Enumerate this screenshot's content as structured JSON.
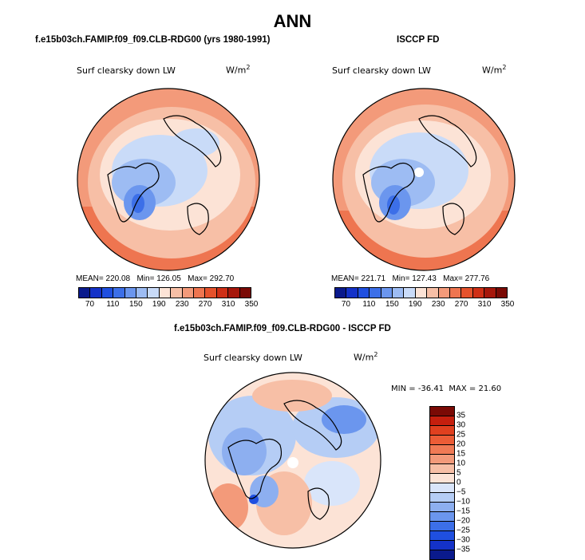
{
  "title": "ANN",
  "panels": {
    "model": {
      "title": "f.e15b03ch.FAMIP.f09_f09.CLB-RDG00 (yrs 1980-1991)",
      "variable": "Surf clearsky down LW",
      "units": "W/m",
      "units_exp": "2",
      "mean_label": "MEAN=",
      "mean": "220.08",
      "min_label": "Min=",
      "min": "126.05",
      "max_label": "Max=",
      "max": "292.70"
    },
    "obs": {
      "title": "ISCCP FD",
      "variable": "Surf clearsky down LW",
      "units": "W/m",
      "units_exp": "2",
      "mean_label": "MEAN=",
      "mean": "221.71",
      "min_label": "Min=",
      "min": "127.43",
      "max_label": "Max=",
      "max": "277.76"
    },
    "diff": {
      "title": "f.e15b03ch.FAMIP.f09_f09.CLB-RDG00 - ISCCP FD",
      "variable": "Surf clearsky down LW",
      "units": "W/m",
      "units_exp": "2",
      "min_label": "MIN =",
      "min": "-36.41",
      "max_label": "MAX =",
      "max": "21.60"
    }
  },
  "colorbar_abs": {
    "ticks": [
      "70",
      "110",
      "150",
      "190",
      "230",
      "270",
      "310",
      "350"
    ],
    "colors": [
      "#0a1a8c",
      "#1432c8",
      "#1f4fe0",
      "#3c6fe8",
      "#6b96ee",
      "#9dbcf3",
      "#c9dbf8",
      "#fce3d6",
      "#f7bfa6",
      "#f39a7a",
      "#ee7550",
      "#e5522c",
      "#cf2f16",
      "#a6170b",
      "#7a0a05"
    ]
  },
  "colorbar_diff": {
    "ticks": [
      "35",
      "30",
      "25",
      "20",
      "15",
      "10",
      "5",
      "0",
      "−5",
      "−10",
      "−15",
      "−20",
      "−25",
      "−30",
      "−35"
    ],
    "colors": [
      "#7a0a05",
      "#c51f0e",
      "#e0401f",
      "#ec5c36",
      "#f07a55",
      "#f39a7a",
      "#f7bfa6",
      "#fce3d6",
      "#d9e5fa",
      "#b5cdf5",
      "#8daff0",
      "#6b96ee",
      "#3c6fe8",
      "#1f4fe0",
      "#1432c8",
      "#0a1a8c"
    ]
  },
  "chart_data": [
    {
      "type": "heatmap",
      "title": "f.e15b03ch.FAMIP.f09_f09.CLB-RDG00 (yrs 1980-1991)",
      "variable": "Surf clearsky down LW",
      "units": "W/m^2",
      "projection": "north polar stereographic",
      "stats": {
        "mean": 220.08,
        "min": 126.05,
        "max": 292.7
      },
      "levels": [
        70,
        90,
        110,
        130,
        150,
        170,
        190,
        210,
        230,
        250,
        270,
        290,
        310,
        330,
        350
      ]
    },
    {
      "type": "heatmap",
      "title": "ISCCP FD",
      "variable": "Surf clearsky down LW",
      "units": "W/m^2",
      "projection": "north polar stereographic",
      "stats": {
        "mean": 221.71,
        "min": 127.43,
        "max": 277.76
      },
      "levels": [
        70,
        90,
        110,
        130,
        150,
        170,
        190,
        210,
        230,
        250,
        270,
        290,
        310,
        330,
        350
      ]
    },
    {
      "type": "heatmap",
      "title": "f.e15b03ch.FAMIP.f09_f09.CLB-RDG00 - ISCCP FD",
      "variable": "Surf clearsky down LW",
      "units": "W/m^2",
      "projection": "north polar stereographic",
      "stats": {
        "min": -36.41,
        "max": 21.6
      },
      "levels": [
        -35,
        -30,
        -25,
        -20,
        -15,
        -10,
        -5,
        0,
        5,
        10,
        15,
        20,
        25,
        30,
        35
      ]
    }
  ]
}
